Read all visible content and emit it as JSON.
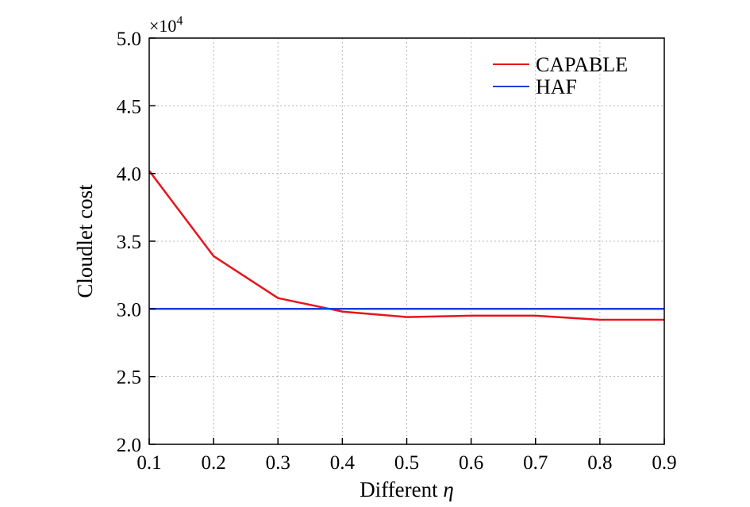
{
  "chart_data": {
    "type": "line",
    "xlabel": "Different η",
    "ylabel": "Cloudlet cost",
    "y_multiplier": "×10",
    "y_exponent": "4",
    "xlim": [
      0.1,
      0.9
    ],
    "ylim": [
      2.0,
      5.0
    ],
    "x_ticks": [
      0.1,
      0.2,
      0.3,
      0.4,
      0.5,
      0.6,
      0.7,
      0.8,
      0.9
    ],
    "x_tick_labels": [
      "0.1",
      "0.2",
      "0.3",
      "0.4",
      "0.5",
      "0.6",
      "0.7",
      "0.8",
      "0.9"
    ],
    "y_ticks": [
      2.0,
      2.5,
      3.0,
      3.5,
      4.0,
      4.5,
      5.0
    ],
    "y_tick_labels": [
      "2.0",
      "2.5",
      "3.0",
      "3.5",
      "4.0",
      "4.5",
      "5.0"
    ],
    "grid": true,
    "legend_position": "top-right",
    "series": [
      {
        "name": "CAPABLE",
        "color": "#e8141c",
        "x": [
          0.1,
          0.2,
          0.3,
          0.4,
          0.5,
          0.6,
          0.7,
          0.8,
          0.9
        ],
        "y": [
          4.02,
          3.39,
          3.08,
          2.98,
          2.94,
          2.95,
          2.95,
          2.92,
          2.92
        ]
      },
      {
        "name": "HAF",
        "color": "#1a3fe0",
        "x": [
          0.1,
          0.9
        ],
        "y": [
          3.0,
          3.0
        ]
      }
    ]
  }
}
